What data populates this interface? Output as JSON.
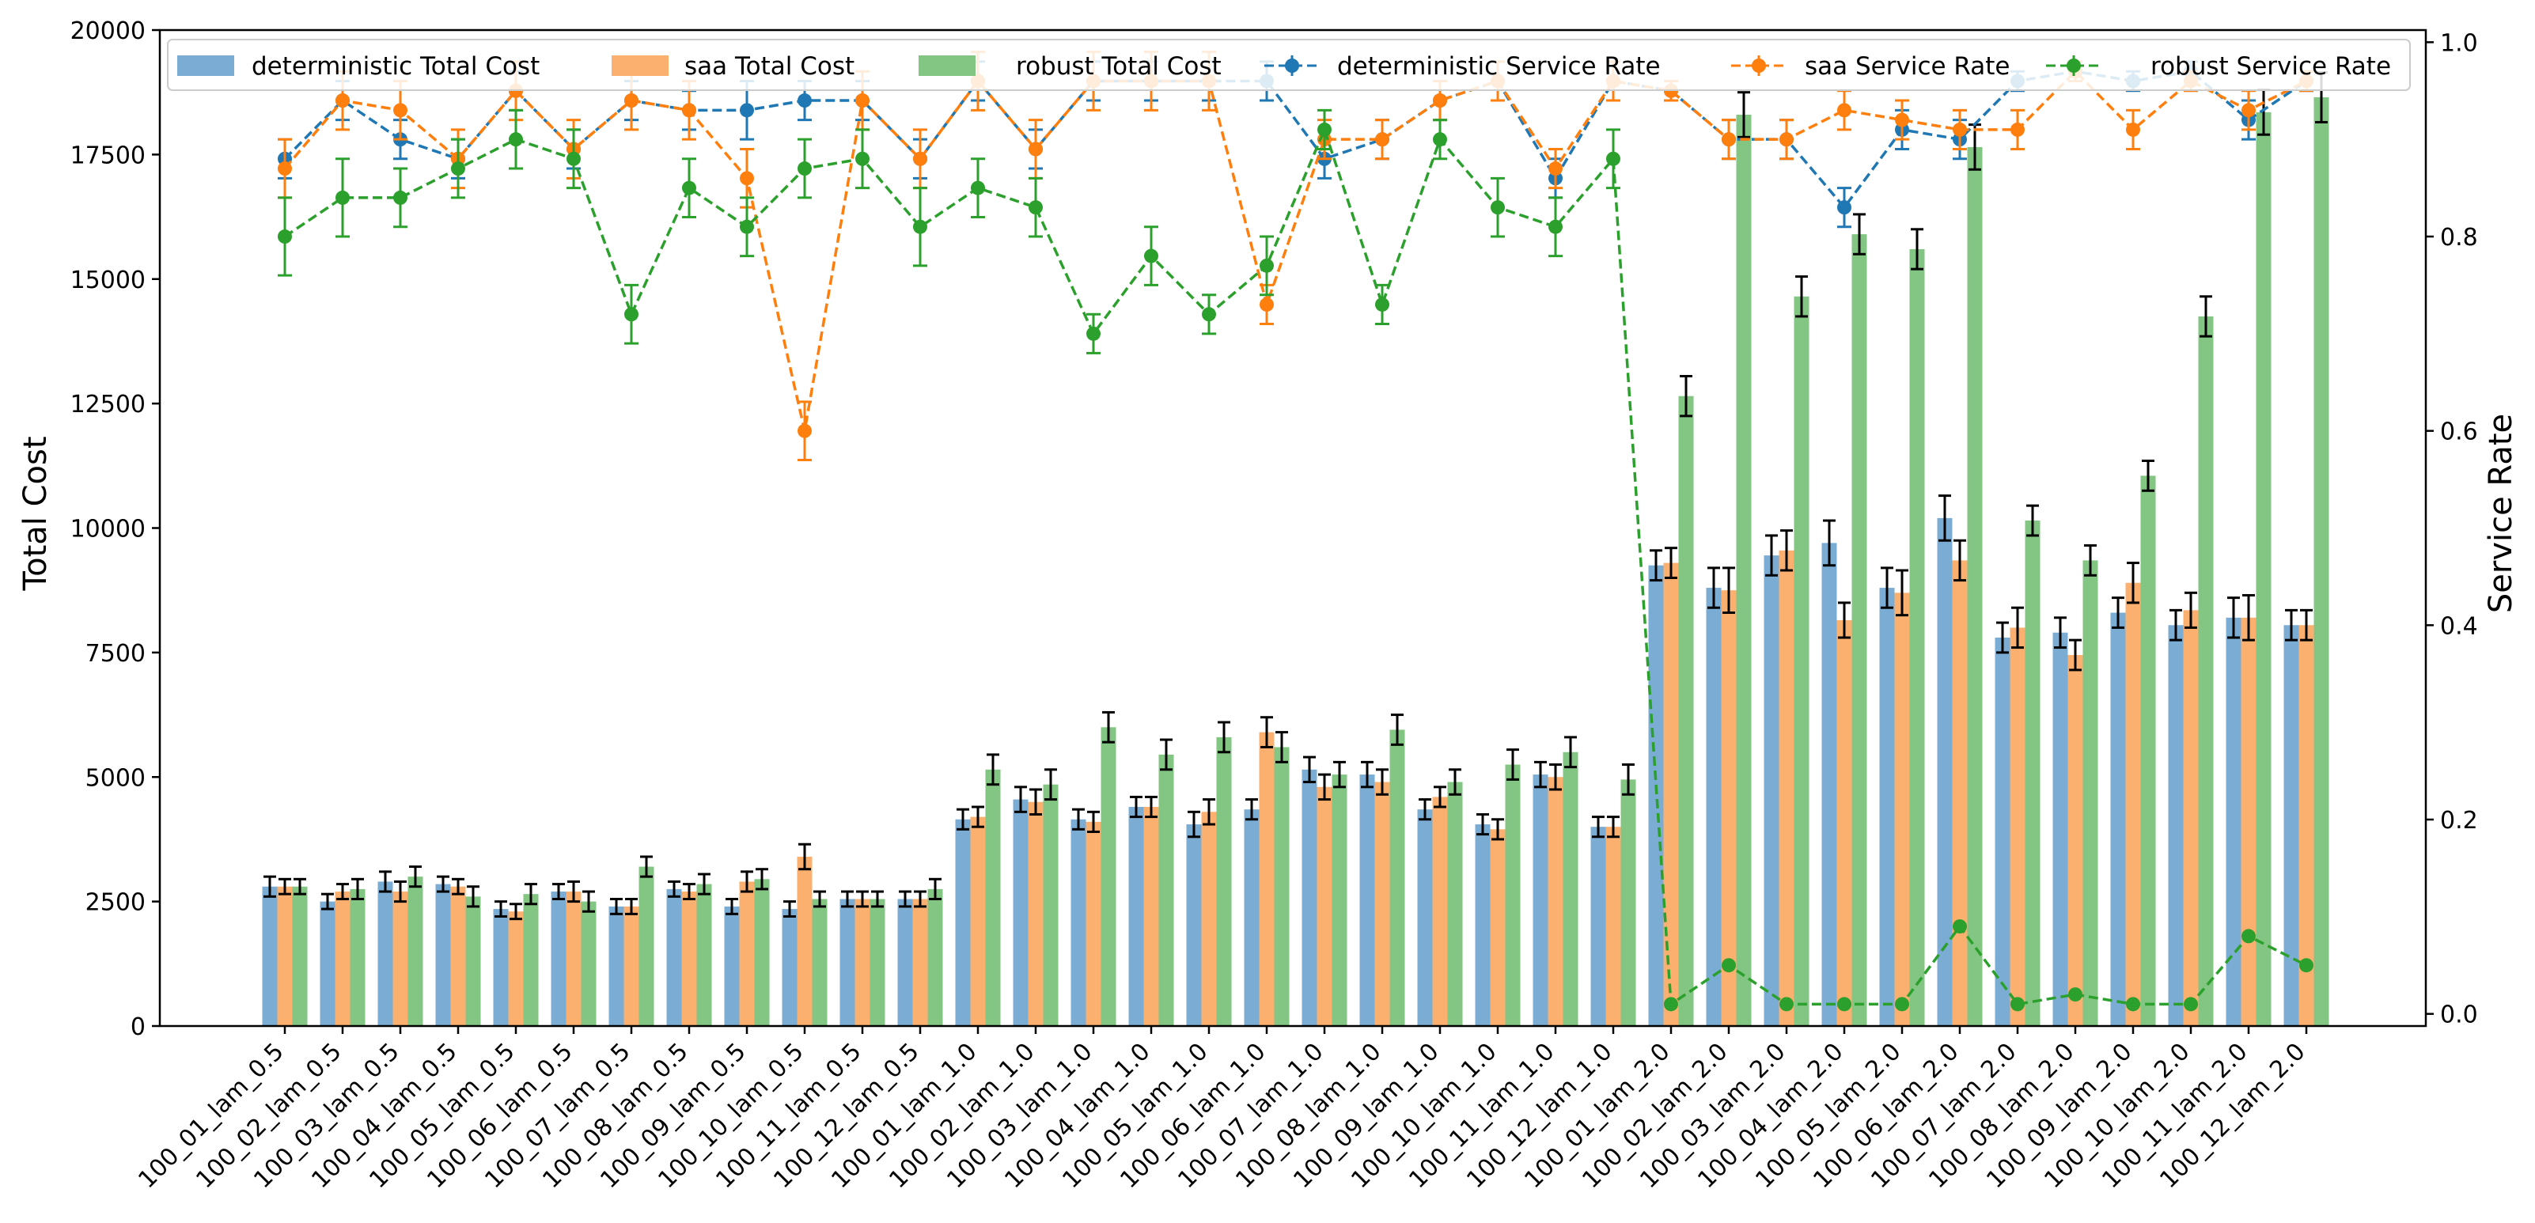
{
  "chart_data": {
    "type": "bar+line",
    "categories": [
      "100_01_lam_0.5",
      "100_02_lam_0.5",
      "100_03_lam_0.5",
      "100_04_lam_0.5",
      "100_05_lam_0.5",
      "100_06_lam_0.5",
      "100_07_lam_0.5",
      "100_08_lam_0.5",
      "100_09_lam_0.5",
      "100_10_lam_0.5",
      "100_11_lam_0.5",
      "100_12_lam_0.5",
      "100_01_lam_1.0",
      "100_02_lam_1.0",
      "100_03_lam_1.0",
      "100_04_lam_1.0",
      "100_05_lam_1.0",
      "100_06_lam_1.0",
      "100_07_lam_1.0",
      "100_08_lam_1.0",
      "100_09_lam_1.0",
      "100_10_lam_1.0",
      "100_11_lam_1.0",
      "100_12_lam_1.0",
      "100_01_lam_2.0",
      "100_02_lam_2.0",
      "100_03_lam_2.0",
      "100_04_lam_2.0",
      "100_05_lam_2.0",
      "100_06_lam_2.0",
      "100_07_lam_2.0",
      "100_08_lam_2.0",
      "100_09_lam_2.0",
      "100_10_lam_2.0",
      "100_11_lam_2.0",
      "100_12_lam_2.0"
    ],
    "ylabel": "Total Cost",
    "y2label": "Service Rate",
    "ylim": [
      0,
      20000
    ],
    "y2lim": [
      -0.0125,
      1.0125
    ],
    "yticks": [
      0,
      2500,
      5000,
      7500,
      10000,
      12500,
      15000,
      17500,
      20000
    ],
    "y2ticks": [
      0.0,
      0.2,
      0.4,
      0.6,
      0.8,
      1.0
    ],
    "colors": {
      "deterministic_bar": "#7bacd4",
      "saa_bar": "#fbb06f",
      "robust_bar": "#83c583",
      "deterministic_line": "#1f77b4",
      "saa_line": "#ff7f0e",
      "robust_line": "#2ca02c"
    },
    "bar_series": [
      {
        "name": "deterministic Total Cost",
        "values": [
          2800,
          2500,
          2900,
          2850,
          2350,
          2700,
          2400,
          2750,
          2400,
          2350,
          2550,
          2550,
          4150,
          4550,
          4150,
          4400,
          4050,
          4350,
          5150,
          5050,
          4350,
          4050,
          5050,
          4000,
          9250,
          8800,
          9450,
          9700,
          8800,
          10200,
          7800,
          7900,
          8300,
          8050,
          8200,
          8050
        ],
        "errors": [
          200,
          150,
          200,
          150,
          150,
          150,
          150,
          150,
          150,
          150,
          150,
          150,
          200,
          250,
          200,
          200,
          250,
          200,
          250,
          250,
          200,
          200,
          250,
          200,
          300,
          400,
          400,
          450,
          400,
          450,
          300,
          300,
          300,
          300,
          400,
          300
        ]
      },
      {
        "name": "saa Total Cost",
        "values": [
          2800,
          2700,
          2700,
          2800,
          2300,
          2700,
          2400,
          2700,
          2900,
          3400,
          2550,
          2550,
          4200,
          4500,
          4100,
          4400,
          4300,
          5900,
          4800,
          4900,
          4600,
          3950,
          5000,
          4000,
          9300,
          8750,
          9550,
          8150,
          8700,
          9350,
          8000,
          7450,
          8900,
          8350,
          8200,
          8050
        ],
        "errors": [
          150,
          150,
          200,
          150,
          150,
          200,
          150,
          150,
          200,
          250,
          150,
          150,
          200,
          250,
          200,
          200,
          250,
          300,
          250,
          250,
          200,
          200,
          250,
          200,
          300,
          450,
          400,
          350,
          450,
          400,
          400,
          300,
          400,
          350,
          450,
          300
        ]
      },
      {
        "name": "robust Total Cost",
        "values": [
          2800,
          2750,
          3000,
          2600,
          2650,
          2500,
          3200,
          2850,
          2950,
          2550,
          2550,
          2750,
          5150,
          4850,
          6000,
          5450,
          5800,
          5600,
          5050,
          5950,
          4900,
          5250,
          5500,
          4950,
          12650,
          18300,
          14650,
          15900,
          15600,
          17650,
          10150,
          9350,
          11050,
          14250,
          18350,
          18650
        ],
        "errors": [
          150,
          200,
          200,
          200,
          200,
          200,
          200,
          200,
          200,
          150,
          150,
          200,
          300,
          300,
          300,
          300,
          300,
          300,
          250,
          300,
          250,
          300,
          300,
          300,
          400,
          450,
          400,
          400,
          400,
          450,
          300,
          300,
          300,
          400,
          450,
          500
        ]
      }
    ],
    "line_series": [
      {
        "name": "deterministic Service Rate",
        "values": [
          0.88,
          0.94,
          0.9,
          0.88,
          0.95,
          0.89,
          0.94,
          0.93,
          0.93,
          0.94,
          0.94,
          0.88,
          0.96,
          0.89,
          0.96,
          0.96,
          0.96,
          0.96,
          0.88,
          0.9,
          0.94,
          0.96,
          0.86,
          0.96,
          0.95,
          0.9,
          0.9,
          0.83,
          0.91,
          0.9,
          0.96,
          0.97,
          0.96,
          0.97,
          0.92,
          0.96
        ],
        "errors": [
          0.02,
          0.02,
          0.02,
          0.02,
          0.02,
          0.02,
          0.02,
          0.02,
          0.03,
          0.02,
          0.02,
          0.02,
          0.02,
          0.02,
          0.02,
          0.02,
          0.02,
          0.02,
          0.02,
          0.02,
          0.02,
          0.02,
          0.02,
          0.02,
          0.01,
          0.02,
          0.02,
          0.02,
          0.02,
          0.02,
          0.01,
          0.01,
          0.01,
          0.01,
          0.02,
          0.01
        ]
      },
      {
        "name": "saa Service Rate",
        "values": [
          0.87,
          0.94,
          0.93,
          0.88,
          0.95,
          0.89,
          0.94,
          0.93,
          0.86,
          0.6,
          0.94,
          0.88,
          0.96,
          0.89,
          0.96,
          0.96,
          0.96,
          0.73,
          0.9,
          0.9,
          0.94,
          0.96,
          0.87,
          0.96,
          0.95,
          0.9,
          0.9,
          0.93,
          0.92,
          0.91,
          0.91,
          0.97,
          0.91,
          0.96,
          0.93,
          0.96
        ],
        "errors": [
          0.03,
          0.03,
          0.03,
          0.03,
          0.03,
          0.03,
          0.03,
          0.03,
          0.03,
          0.03,
          0.03,
          0.03,
          0.03,
          0.03,
          0.03,
          0.03,
          0.03,
          0.02,
          0.02,
          0.02,
          0.02,
          0.02,
          0.02,
          0.02,
          0.01,
          0.02,
          0.02,
          0.02,
          0.02,
          0.02,
          0.02,
          0.01,
          0.02,
          0.01,
          0.02,
          0.01
        ]
      },
      {
        "name": "robust Service Rate",
        "values": [
          0.8,
          0.84,
          0.84,
          0.87,
          0.9,
          0.88,
          0.72,
          0.85,
          0.81,
          0.87,
          0.88,
          0.81,
          0.85,
          0.83,
          0.7,
          0.78,
          0.72,
          0.77,
          0.91,
          0.73,
          0.9,
          0.83,
          0.81,
          0.88,
          0.01,
          0.05,
          0.01,
          0.01,
          0.01,
          0.09,
          0.01,
          0.02,
          0.01,
          0.01,
          0.08,
          0.05
        ],
        "errors": [
          0.04,
          0.04,
          0.03,
          0.03,
          0.03,
          0.03,
          0.03,
          0.03,
          0.03,
          0.03,
          0.03,
          0.04,
          0.03,
          0.03,
          0.02,
          0.03,
          0.02,
          0.03,
          0.02,
          0.02,
          0.02,
          0.03,
          0.03,
          0.03,
          0,
          0,
          0,
          0,
          0,
          0,
          0,
          0,
          0,
          0,
          0,
          0
        ]
      }
    ],
    "legend": {
      "placement": "top",
      "entries": [
        "deterministic Total Cost",
        "saa Total Cost",
        "robust Total Cost",
        "deterministic Service Rate",
        "saa Service Rate",
        "robust Service Rate"
      ]
    }
  }
}
